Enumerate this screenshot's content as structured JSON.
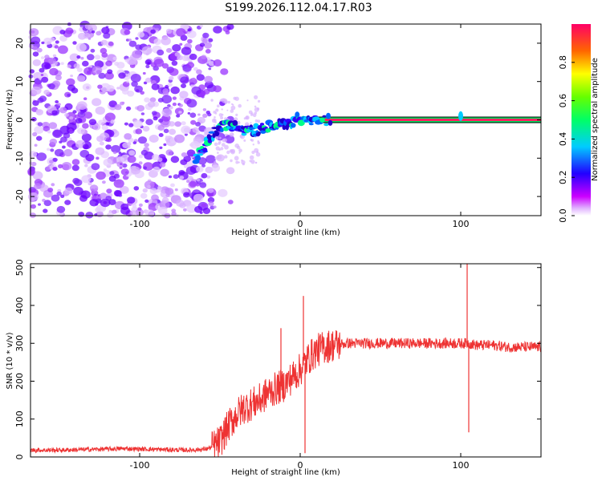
{
  "title": "S199.2026.112.04.17.R03",
  "chart_data": [
    {
      "type": "heatmap",
      "name": "spectrogram",
      "xlabel": "Height of straight line (km)",
      "ylabel": "Frequency (Hz)",
      "xlim": [
        -168,
        150
      ],
      "ylim": [
        -25,
        25
      ],
      "xticks": [
        -100,
        0,
        100
      ],
      "yticks": [
        -20,
        -10,
        0,
        10,
        20
      ],
      "colorbar": {
        "label": "Normalized spectral amplitude",
        "range": [
          0,
          1
        ],
        "ticks": [
          0.0,
          0.2,
          0.4,
          0.6,
          0.8
        ]
      },
      "noise_region_x": [
        -168,
        -55
      ],
      "signal_track": {
        "x": [
          -65,
          -60,
          -55,
          -50,
          -45,
          -40,
          -35,
          -30,
          -25,
          -20,
          -15,
          -10,
          -5,
          0,
          5,
          10,
          20,
          40,
          60,
          80,
          100,
          120,
          150
        ],
        "y": [
          -10,
          -7,
          -4,
          -2,
          -1,
          -2,
          -3,
          -3,
          -2.5,
          -2,
          -1.5,
          -1,
          -0.5,
          0.5,
          0.2,
          0,
          0,
          0,
          0,
          0,
          0,
          0,
          0
        ]
      }
    },
    {
      "type": "line",
      "name": "snr",
      "xlabel": "Height of straight line (km)",
      "ylabel": "SNR (10 * v/v)",
      "xlim": [
        -168,
        150
      ],
      "ylim": [
        0,
        510
      ],
      "xticks": [
        -100,
        0,
        100
      ],
      "yticks": [
        0,
        100,
        200,
        300,
        400,
        500
      ],
      "series": [
        {
          "name": "SNR",
          "color": "#ee3333",
          "x": [
            -168,
            -150,
            -130,
            -110,
            -90,
            -70,
            -60,
            -55,
            -50,
            -45,
            -40,
            -35,
            -30,
            -25,
            -20,
            -15,
            -10,
            -5,
            0,
            5,
            10,
            15,
            20,
            30,
            40,
            60,
            80,
            95,
            100,
            105,
            110,
            120,
            130,
            140,
            150
          ],
          "values": [
            18,
            18,
            20,
            22,
            20,
            18,
            20,
            25,
            40,
            80,
            110,
            130,
            140,
            150,
            170,
            180,
            190,
            210,
            230,
            260,
            280,
            290,
            295,
            300,
            300,
            300,
            300,
            300,
            300,
            300,
            295,
            295,
            290,
            290,
            290
          ]
        }
      ],
      "spikes": [
        {
          "x": 2,
          "value": 425
        },
        {
          "x": 3,
          "value": 10
        },
        {
          "x": 104,
          "value": 510
        },
        {
          "x": 105,
          "value": 65
        },
        {
          "x": -12,
          "value": 340
        }
      ]
    }
  ]
}
